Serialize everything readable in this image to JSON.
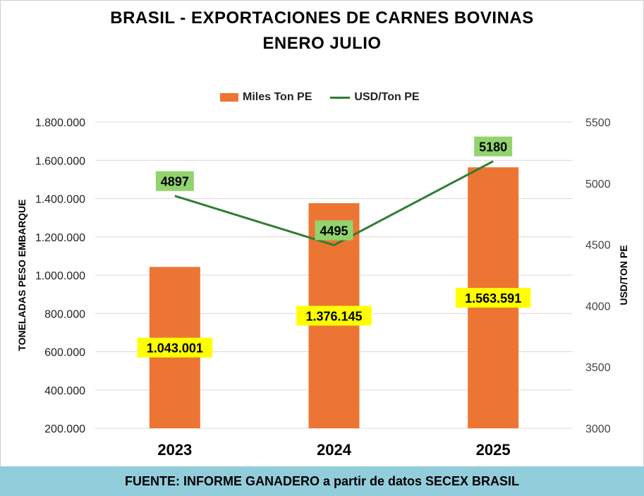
{
  "title_line1": "BRASIL - EXPORTACIONES DE CARNES BOVINAS",
  "title_line2": "ENERO JULIO",
  "legend": {
    "bar_label": "Miles Ton PE",
    "line_label": "USD/Ton PE"
  },
  "footer": "FUENTE: INFORME GANADERO a partir de datos SECEX BRASIL",
  "colors": {
    "bar": "#ed7533",
    "line": "#2e7d32",
    "bar_label_bg": "#ffff00",
    "line_label_bg": "#92d36e",
    "footer_bg": "#92cddc",
    "grid": "#d9d9d9"
  },
  "chart_data": {
    "type": "bar",
    "categories": [
      "2023",
      "2024",
      "2025"
    ],
    "series": [
      {
        "name": "Miles Ton PE",
        "type": "bar",
        "axis": "left",
        "values": [
          1043001,
          1376145,
          1563591
        ],
        "labels": [
          "1.043.001",
          "1.376.145",
          "1.563.591"
        ]
      },
      {
        "name": "USD/Ton PE",
        "type": "line",
        "axis": "right",
        "values": [
          4897,
          4495,
          5180
        ],
        "labels": [
          "4897",
          "4495",
          "5180"
        ]
      }
    ],
    "y_left": {
      "label": "TONELADAS PESO EMBARQUE",
      "min": 200000,
      "max": 1800000,
      "step": 200000,
      "ticks": [
        "200.000",
        "400.000",
        "600.000",
        "800.000",
        "1.000.000",
        "1.200.000",
        "1.400.000",
        "1.600.000",
        "1.800.000"
      ]
    },
    "y_right": {
      "label": "USD/TON PE",
      "min": 3000,
      "max": 5500,
      "step": 500,
      "ticks": [
        "3000",
        "3500",
        "4000",
        "4500",
        "5000",
        "5500"
      ]
    },
    "grid": true,
    "legend_position": "top"
  }
}
